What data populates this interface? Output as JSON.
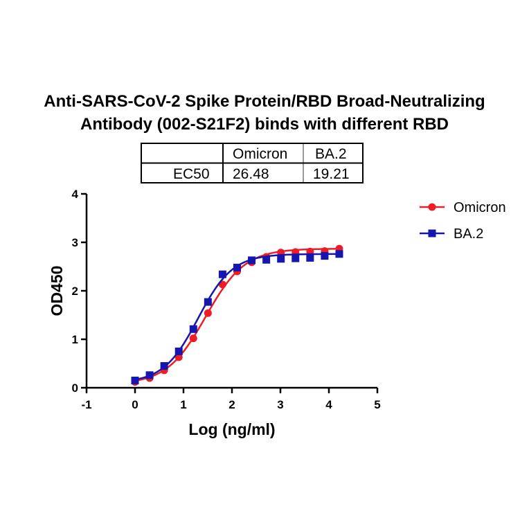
{
  "chart_data": {
    "type": "line",
    "title_lines": [
      "Anti-SARS-CoV-2 Spike Protein/RBD Broad-Neutralizing",
      "Antibody (002-S21F2) binds with different RBD"
    ],
    "xlabel": "Log (ng/ml)",
    "ylabel": "OD450",
    "xlim": [
      -1,
      5
    ],
    "ylim": [
      0,
      4
    ],
    "xticks": [
      "-1",
      "0",
      "1",
      "2",
      "3",
      "4",
      "5"
    ],
    "yticks": [
      "0",
      "1",
      "2",
      "3",
      "4"
    ],
    "legend_position": "top-right",
    "table": {
      "headers": [
        "",
        "Omicron",
        "BA.2"
      ],
      "row_label": "EC50",
      "values": [
        "26.48",
        "19.21"
      ]
    },
    "series": [
      {
        "name": "Omicron",
        "color": "#ee1c25",
        "marker": "circle",
        "x": [
          0,
          0.301,
          0.602,
          0.903,
          1.204,
          1.505,
          1.806,
          2.107,
          2.408,
          2.709,
          3.01,
          3.311,
          3.612,
          3.913,
          4.214
        ],
        "y": [
          0.12,
          0.2,
          0.36,
          0.63,
          1.02,
          1.54,
          2.13,
          2.4,
          2.59,
          2.7,
          2.79,
          2.8,
          2.81,
          2.82,
          2.87
        ]
      },
      {
        "name": "BA.2",
        "color": "#1515b0",
        "marker": "square",
        "x": [
          0,
          0.301,
          0.602,
          0.903,
          1.204,
          1.505,
          1.806,
          2.107,
          2.408,
          2.709,
          3.01,
          3.311,
          3.612,
          3.913,
          4.214
        ],
        "y": [
          0.15,
          0.26,
          0.45,
          0.75,
          1.21,
          1.77,
          2.34,
          2.48,
          2.63,
          2.64,
          2.66,
          2.67,
          2.68,
          2.72,
          2.76
        ]
      }
    ]
  }
}
